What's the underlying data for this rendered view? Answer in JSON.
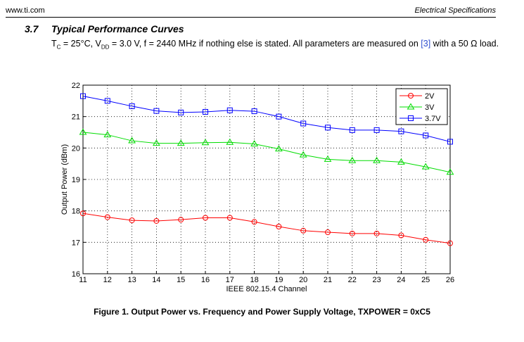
{
  "header": {
    "left": "www.ti.com",
    "right": "Electrical Specifications"
  },
  "section": {
    "number": "3.7",
    "title": "Typical Performance Curves"
  },
  "paragraph": {
    "tc": "T",
    "tc_sub": "C",
    "p1": " = 25°C, V",
    "vdd_sub": "DD",
    "p2": " = 3.0 V, f = 2440 MHz if nothing else is stated. All parameters are measured on ",
    "ref": "[3]",
    "p3": " with a 50 Ω load."
  },
  "caption": "Figure 1. Output Power vs. Frequency and Power Supply Voltage, TXPOWER = 0xC5",
  "chart_data": {
    "type": "line",
    "title": "",
    "xlabel": "IEEE 802.15.4 Channel",
    "ylabel": "Output Power (dBm)",
    "xlim": [
      11,
      26
    ],
    "ylim": [
      16,
      22
    ],
    "grid": true,
    "legend_placement": "top-right",
    "x": [
      11,
      12,
      13,
      14,
      15,
      16,
      17,
      18,
      19,
      20,
      21,
      22,
      23,
      24,
      25,
      26
    ],
    "yticks": [
      16,
      17,
      18,
      19,
      20,
      21,
      22
    ],
    "series": [
      {
        "name": "2V",
        "color": "#ff0000",
        "marker": "circle",
        "values": [
          17.92,
          17.8,
          17.7,
          17.68,
          17.72,
          17.78,
          17.78,
          17.65,
          17.5,
          17.37,
          17.32,
          17.28,
          17.28,
          17.22,
          17.08,
          16.97
        ]
      },
      {
        "name": "3V",
        "color": "#00dd00",
        "marker": "triangle",
        "values": [
          20.5,
          20.42,
          20.23,
          20.15,
          20.15,
          20.17,
          20.18,
          20.13,
          19.97,
          19.78,
          19.64,
          19.6,
          19.6,
          19.55,
          19.4,
          19.23
        ]
      },
      {
        "name": "3.7V",
        "color": "#0000ff",
        "marker": "square",
        "values": [
          21.65,
          21.5,
          21.33,
          21.18,
          21.13,
          21.15,
          21.2,
          21.17,
          21.0,
          20.78,
          20.65,
          20.57,
          20.57,
          20.53,
          20.4,
          20.2
        ]
      }
    ]
  }
}
